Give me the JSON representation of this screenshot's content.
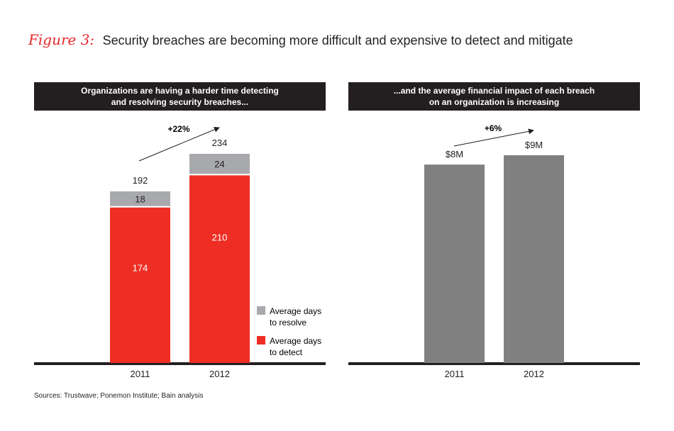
{
  "figure": {
    "label": "Figure 3:",
    "title": "Security breaches are becoming more difficult and expensive to detect and mitigate"
  },
  "colors": {
    "red": "#ee2e24",
    "light_gray": "#a7a9ac",
    "dark_gray": "#808080",
    "header_bg": "#231f20",
    "axis": "#231f20"
  },
  "chart_data": [
    {
      "type": "bar",
      "stacked": true,
      "title": "Organizations are having a harder time detecting and resolving security breaches...",
      "title_lines": [
        "Organizations are having a harder time detecting",
        "and resolving security breaches..."
      ],
      "categories": [
        "2011",
        "2012"
      ],
      "series": [
        {
          "name": "Average days to detect",
          "values": [
            174,
            210
          ],
          "color": "#ee2e24"
        },
        {
          "name": "Average days to resolve",
          "values": [
            18,
            24
          ],
          "color": "#a7a9ac"
        }
      ],
      "totals": [
        192,
        234
      ],
      "totals_labels": [
        "192",
        "234"
      ],
      "annotation": "+22%",
      "legend": [
        {
          "label_lines": [
            "Average days",
            "to resolve"
          ],
          "color": "#a7a9ac"
        },
        {
          "label_lines": [
            "Average days",
            "to detect"
          ],
          "color": "#ee2e24"
        }
      ],
      "legend_position": "bottom-right",
      "ylim": [
        0,
        234
      ],
      "xlabel": "",
      "ylabel": "",
      "grid": false
    },
    {
      "type": "bar",
      "title": "...and the average financial impact of each breach on an organization is increasing",
      "title_lines": [
        "...and the average financial impact of each breach",
        "on an organization is increasing"
      ],
      "categories": [
        "2011",
        "2012"
      ],
      "values": [
        8.5,
        8.9
      ],
      "value_labels": [
        "$8M",
        "$9M"
      ],
      "units": "$M",
      "annotation": "+6%",
      "color": "#808080",
      "ylim": [
        0,
        8.9
      ],
      "xlabel": "",
      "ylabel": "",
      "grid": false
    }
  ],
  "footer": {
    "sources": "Sources: Trustwave; Ponemon Institute; Bain analysis"
  }
}
